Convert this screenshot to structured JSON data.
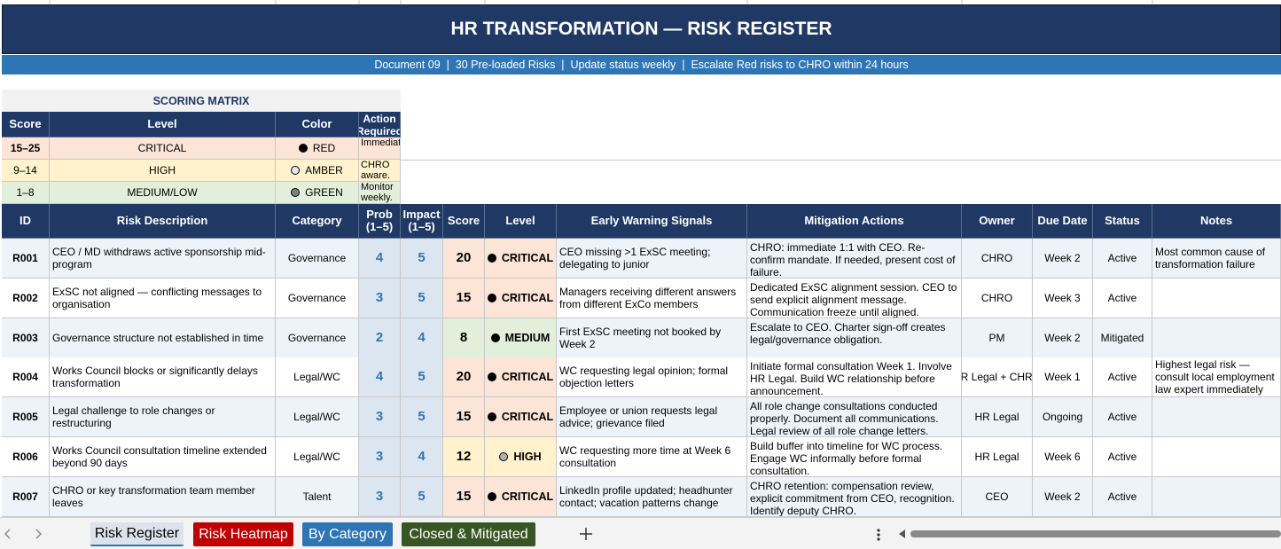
{
  "header": {
    "title": "HR TRANSFORMATION — RISK REGISTER",
    "subtitle": "Document 09  |  30 Pre-loaded Risks  |  Update status weekly  |  Escalate Red risks to CHRO within 24 hours"
  },
  "scoring_matrix": {
    "title": "SCORING MATRIX",
    "columns": [
      "Score",
      "Level",
      "Color",
      "Action Required"
    ],
    "rows": [
      {
        "score": "15–25",
        "level": "CRITICAL",
        "color": "RED",
        "action": "Immediate",
        "fill": "#fce4d6",
        "dot": "#000000"
      },
      {
        "score": "9–14",
        "level": "HIGH",
        "color": "AMBER",
        "action": "CHRO aware.",
        "fill": "#fff2cc",
        "dot": "#e7e6e6"
      },
      {
        "score": "1–8",
        "level": "MEDIUM/LOW",
        "color": "GREEN",
        "action": "Monitor weekly.",
        "fill": "#e2efda",
        "dot": "#808080"
      }
    ]
  },
  "register": {
    "columns": [
      "ID",
      "Risk Description",
      "Category",
      "Prob (1–5)",
      "Impact (1–5)",
      "Score",
      "Level",
      "Early Warning Signals",
      "Mitigation Actions",
      "Owner",
      "Due Date",
      "Status",
      "Notes"
    ],
    "rows": [
      {
        "id": "R001",
        "description": "CEO / MD withdraws active sponsorship mid-program",
        "category": "Governance",
        "prob": 4,
        "impact": 5,
        "score": 20,
        "level": "CRITICAL",
        "warning": "CEO missing >1 ExSC meeting; delegating to junior",
        "mitigation": "CHRO: immediate 1:1 with CEO. Re-confirm mandate. If needed, present cost of failure.",
        "owner": "CHRO",
        "due": "Week 2",
        "status": "Active",
        "notes": "Most common cause of transformation failure",
        "fill": "#fce4d6",
        "dot": "#000000"
      },
      {
        "id": "R002",
        "description": "ExSC not aligned — conflicting messages to organisation",
        "category": "Governance",
        "prob": 3,
        "impact": 5,
        "score": 15,
        "level": "CRITICAL",
        "warning": "Managers receiving different answers from different ExCo members",
        "mitigation": "Dedicated ExSC alignment session. CEO to send explicit alignment message. Communication freeze until aligned.",
        "owner": "CHRO",
        "due": "Week 3",
        "status": "Active",
        "notes": "",
        "fill": "#fce4d6",
        "dot": "#000000"
      },
      {
        "id": "R003",
        "description": "Governance structure not established in time",
        "category": "Governance",
        "prob": 2,
        "impact": 4,
        "score": 8,
        "level": "MEDIUM",
        "warning": "First ExSC meeting not booked by Week 2",
        "mitigation": "Escalate to CEO. Charter sign-off creates legal/governance obligation.",
        "owner": "PM",
        "due": "Week 2",
        "status": "Mitigated",
        "notes": "",
        "fill": "#e2efda",
        "dot": "#000000"
      },
      {
        "id": "R004",
        "description": "Works Council blocks or significantly delays transformation",
        "category": "Legal/WC",
        "prob": 4,
        "impact": 5,
        "score": 20,
        "level": "CRITICAL",
        "warning": "WC requesting legal opinion; formal objection letters",
        "mitigation": "Initiate formal consultation Week 1. Involve HR Legal. Build WC relationship before announcement.",
        "owner": "HR Legal + CHRO",
        "due": "Week 1",
        "status": "Active",
        "notes": "Highest legal risk — consult local employment law expert immediately",
        "fill": "#fce4d6",
        "dot": "#000000"
      },
      {
        "id": "R005",
        "description": "Legal challenge to role changes or restructuring",
        "category": "Legal/WC",
        "prob": 3,
        "impact": 5,
        "score": 15,
        "level": "CRITICAL",
        "warning": "Employee or union requests legal advice; grievance filed",
        "mitigation": "All role change consultations conducted properly. Document all communications. Legal review of all role change letters.",
        "owner": "HR Legal",
        "due": "Ongoing",
        "status": "Active",
        "notes": "",
        "fill": "#fce4d6",
        "dot": "#000000"
      },
      {
        "id": "R006",
        "description": "Works Council consultation timeline extended beyond 90 days",
        "category": "Legal/WC",
        "prob": 3,
        "impact": 4,
        "score": 12,
        "level": "HIGH",
        "warning": "WC requesting more time at Week 6 consultation",
        "mitigation": "Build buffer into timeline for WC process. Engage WC informally before formal consultation.",
        "owner": "HR Legal",
        "due": "Week 6",
        "status": "Active",
        "notes": "",
        "fill": "#fff2cc",
        "dot": "#b0b0b0"
      },
      {
        "id": "R007",
        "description": "CHRO or key transformation team member leaves",
        "category": "Talent",
        "prob": 3,
        "impact": 5,
        "score": 15,
        "level": "CRITICAL",
        "warning": "LinkedIn profile updated; headhunter contact; vacation patterns change",
        "mitigation": "CHRO retention: compensation review, explicit commitment from CEO, recognition. Identify deputy CHRO.",
        "owner": "CEO",
        "due": "Week 2",
        "status": "Active",
        "notes": "",
        "fill": "#fce4d6",
        "dot": "#000000"
      }
    ]
  },
  "tabs": [
    {
      "label": "Risk Register",
      "color": "#dde3ec",
      "text_color": "#000000"
    },
    {
      "label": "Risk Heatmap",
      "color": "#c00000",
      "text_color": "#ffffff"
    },
    {
      "label": "By Category",
      "color": "#2e75b6",
      "text_color": "#ffffff"
    },
    {
      "label": "Closed & Mitigated",
      "color": "#375623",
      "text_color": "#ffffff"
    }
  ]
}
